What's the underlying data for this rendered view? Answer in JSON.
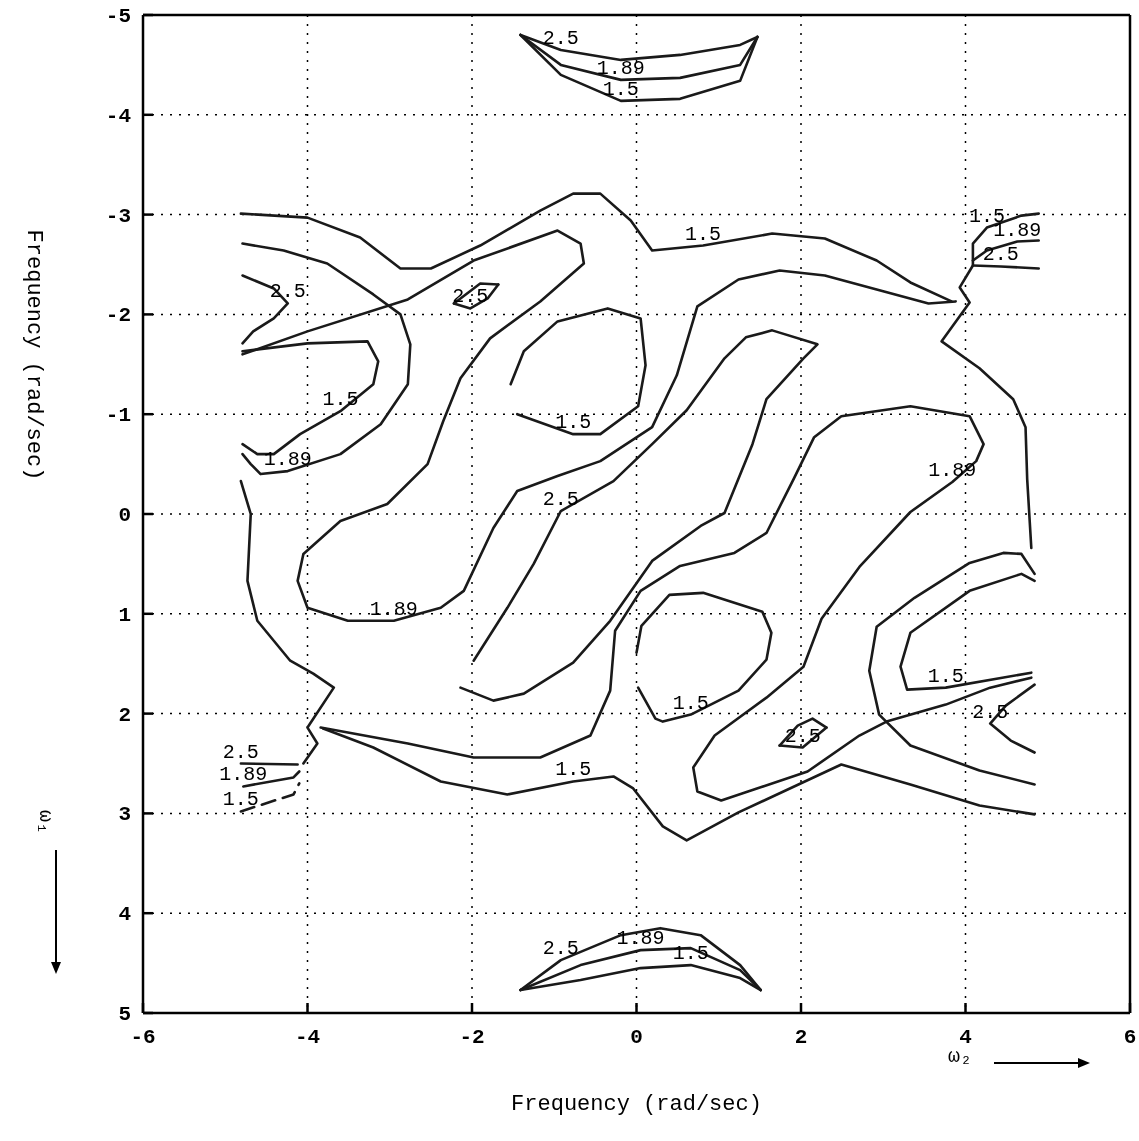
{
  "chart_data": {
    "type": "line",
    "xlabel": "Frequency (rad/sec)",
    "ylabel": "Frequency (rad/sec)",
    "xlim": [
      -6,
      6
    ],
    "ylim": [
      5,
      -5
    ],
    "xticks": [
      -6,
      -4,
      -2,
      0,
      2,
      4,
      6
    ],
    "yticks": [
      -5,
      -4,
      -3,
      -2,
      -1,
      0,
      1,
      2,
      3,
      4,
      5
    ],
    "grid": true,
    "series": [
      {
        "color": "#1a1a1a",
        "x": [
          -1.41,
          -0.92,
          -0.19,
          0.53,
          1.26,
          1.47
        ],
        "values": [
          -4.8,
          -4.65,
          -4.55,
          -4.6,
          -4.7,
          -4.78
        ]
      },
      {
        "color": "#1a1a1a",
        "x": [
          -1.41,
          -0.92,
          -0.19,
          0.53,
          1.26,
          1.47
        ],
        "values": [
          -4.8,
          -4.5,
          -4.35,
          -4.37,
          -4.5,
          -4.78
        ]
      },
      {
        "color": "#1a1a1a",
        "x": [
          -1.41,
          -0.92,
          -0.19,
          0.53,
          1.26,
          1.47
        ],
        "values": [
          -4.8,
          -4.4,
          -4.14,
          -4.16,
          -4.34,
          -4.78
        ]
      },
      {
        "color": "#1a1a1a",
        "x": [
          -1.41,
          -0.92,
          -0.19,
          0.29,
          0.78,
          1.26,
          1.51
        ],
        "values": [
          4.77,
          4.47,
          4.22,
          4.15,
          4.22,
          4.52,
          4.77
        ]
      },
      {
        "color": "#1a1a1a",
        "x": [
          -1.41,
          -0.68,
          0.05,
          0.66,
          1.26,
          1.51
        ],
        "values": [
          4.77,
          4.52,
          4.37,
          4.35,
          4.57,
          4.77
        ]
      },
      {
        "color": "#1a1a1a",
        "x": [
          -1.41,
          -0.68,
          0.05,
          0.66,
          1.26,
          1.51
        ],
        "values": [
          4.77,
          4.67,
          4.55,
          4.52,
          4.65,
          4.77
        ]
      },
      {
        "color": "#1a1a1a",
        "x": [
          -4.81,
          -4.0,
          -3.36,
          -2.87,
          -2.5,
          -1.9,
          -1.17,
          -0.77,
          -0.44,
          -0.07,
          0.19,
          0.81,
          1.65,
          2.29,
          2.92,
          3.33,
          3.83
        ],
        "values": [
          -3.01,
          -2.97,
          -2.77,
          -2.46,
          -2.46,
          -2.69,
          -3.04,
          -3.21,
          -3.21,
          -2.94,
          -2.64,
          -2.69,
          -2.81,
          -2.76,
          -2.54,
          -2.32,
          -2.13
        ]
      },
      {
        "color": "#1a1a1a",
        "x": [
          4.89,
          4.68,
          4.26,
          4.09,
          4.09,
          3.93,
          4.05,
          3.71,
          4.17,
          4.58,
          4.73,
          4.75,
          4.8
        ],
        "values": [
          -3.01,
          -2.99,
          -2.87,
          -2.71,
          -2.49,
          -2.27,
          -2.12,
          -1.73,
          -1.46,
          -1.15,
          -0.87,
          -0.35,
          0.34
        ]
      },
      {
        "color": "#1a1a1a",
        "x": [
          4.09,
          4.26,
          4.63,
          4.89
        ],
        "values": [
          -2.54,
          -2.64,
          -2.73,
          -2.74
        ]
      },
      {
        "color": "#1a1a1a",
        "x": [
          4.09,
          4.43,
          4.89
        ],
        "values": [
          -2.49,
          -2.48,
          -2.46
        ]
      },
      {
        "color": "#1a1a1a",
        "x": [
          -4.79,
          -4.29,
          -3.76,
          -3.2,
          -2.87,
          -2.75,
          -2.78,
          -3.11,
          -3.6,
          -4.24,
          -4.57,
          -4.69,
          -4.79
        ],
        "values": [
          -2.71,
          -2.64,
          -2.51,
          -2.2,
          -2.0,
          -1.7,
          -1.3,
          -0.9,
          -0.6,
          -0.43,
          -0.4,
          -0.5,
          -0.6
        ]
      },
      {
        "color": "#1a1a1a",
        "x": [
          -4.79,
          -4.0,
          -3.27,
          -3.14,
          -3.2,
          -3.6,
          -4.09,
          -4.41,
          -4.61,
          -4.79
        ],
        "values": [
          -1.63,
          -1.71,
          -1.73,
          -1.53,
          -1.3,
          -1.03,
          -0.8,
          -0.6,
          -0.6,
          -0.7
        ]
      },
      {
        "color": "#1a1a1a",
        "x": [
          -4.79,
          -4.41,
          -4.24,
          -4.41,
          -4.66,
          -4.79
        ],
        "values": [
          -2.39,
          -2.26,
          -2.11,
          -1.96,
          -1.83,
          -1.71
        ]
      },
      {
        "color": "#1a1a1a",
        "x": [
          -2.22,
          -1.9,
          -1.68
        ],
        "values": [
          -2.11,
          -2.31,
          -2.3
        ]
      },
      {
        "color": "#1a1a1a",
        "x": [
          -1.68,
          -1.81,
          -2.02,
          -2.22
        ],
        "values": [
          -2.3,
          -2.16,
          -2.06,
          -2.11
        ]
      },
      {
        "color": "#1a1a1a",
        "x": [
          -4.79,
          -4.0,
          -2.78,
          -1.98,
          -0.96,
          -0.68,
          -0.64,
          -1.17,
          -1.78,
          -2.14,
          -2.35,
          -2.54,
          -3.03,
          -3.6,
          -4.05,
          -4.12,
          -4.0,
          -3.51,
          -2.95,
          -2.38,
          -2.1,
          -1.74,
          -1.45,
          -0.96,
          -0.44,
          0.19,
          0.49,
          0.74,
          1.24,
          1.74,
          2.29,
          2.92,
          3.55,
          3.88
        ],
        "values": [
          -1.6,
          -1.83,
          -2.15,
          -2.54,
          -2.84,
          -2.71,
          -2.51,
          -2.13,
          -1.76,
          -1.36,
          -0.93,
          -0.5,
          -0.1,
          0.07,
          0.4,
          0.67,
          0.94,
          1.07,
          1.07,
          0.94,
          0.77,
          0.14,
          -0.23,
          -0.38,
          -0.53,
          -0.87,
          -1.39,
          -2.08,
          -2.35,
          -2.44,
          -2.39,
          -2.25,
          -2.11,
          -2.13
        ]
      },
      {
        "color": "#1a1a1a",
        "x": [
          -1.53,
          -1.37,
          -0.96,
          -0.35,
          0.05,
          0.11,
          0.02,
          -0.44,
          -0.77,
          -1.45
        ],
        "values": [
          -1.3,
          -1.63,
          -1.93,
          -2.06,
          -1.96,
          -1.49,
          -1.08,
          -0.8,
          -0.8,
          -1.0
        ]
      },
      {
        "color": "#1a1a1a",
        "x": [
          -2.14,
          -1.74,
          -1.37,
          -0.77,
          -0.32,
          0.19,
          0.78,
          1.07,
          1.41,
          1.58,
          2.03,
          2.2,
          1.65,
          1.33,
          1.07,
          0.61,
          0.19,
          -0.28,
          -0.92,
          -1.25,
          -1.57,
          -1.98
        ],
        "values": [
          1.74,
          1.87,
          1.8,
          1.49,
          1.07,
          0.47,
          0.12,
          -0.01,
          -0.7,
          -1.15,
          -1.56,
          -1.7,
          -1.84,
          -1.77,
          -1.56,
          -1.04,
          -0.7,
          -0.33,
          -0.03,
          0.5,
          0.94,
          1.47
        ]
      },
      {
        "color": "#1a1a1a",
        "x": [
          4.8,
          4.3,
          3.76,
          3.04,
          2.71,
          2.08,
          1.03,
          0.74,
          0.69,
          0.95,
          1.58,
          2.03,
          2.25,
          2.71,
          3.33,
          3.84,
          4.13,
          4.22,
          4.05,
          3.33,
          2.49,
          2.16,
          1.91,
          1.58,
          1.19,
          0.53,
          0.05,
          -0.26,
          -0.32,
          -0.56,
          -1.17,
          -1.98,
          -2.78,
          -3.84
        ],
        "values": [
          1.64,
          1.74,
          1.91,
          2.08,
          2.22,
          2.58,
          2.87,
          2.78,
          2.54,
          2.22,
          1.84,
          1.53,
          1.05,
          0.53,
          -0.02,
          -0.32,
          -0.53,
          -0.7,
          -0.98,
          -1.08,
          -0.98,
          -0.77,
          -0.35,
          0.19,
          0.39,
          0.52,
          0.77,
          1.17,
          1.77,
          2.22,
          2.44,
          2.44,
          2.3,
          2.14
        ]
      },
      {
        "color": "#1a1a1a",
        "x": [
          0.0,
          0.06,
          0.4,
          0.81,
          1.53,
          1.64,
          1.58,
          1.24,
          0.66,
          0.32,
          0.23,
          0.02
        ],
        "values": [
          1.39,
          1.12,
          0.81,
          0.79,
          0.98,
          1.19,
          1.46,
          1.77,
          2.01,
          2.08,
          2.05,
          1.74
        ]
      },
      {
        "color": "#1a1a1a",
        "x": [
          4.84,
          4.68,
          4.05,
          3.33,
          3.21,
          3.29,
          3.76,
          4.8
        ],
        "values": [
          0.67,
          0.6,
          0.77,
          1.19,
          1.53,
          1.76,
          1.74,
          1.59
        ]
      },
      {
        "color": "#1a1a1a",
        "x": [
          4.84,
          4.68,
          4.46,
          4.05,
          3.38,
          2.92,
          2.83,
          2.95,
          3.33,
          4.17,
          4.84
        ],
        "values": [
          0.6,
          0.4,
          0.39,
          0.49,
          0.84,
          1.13,
          1.57,
          2.01,
          2.32,
          2.57,
          2.71
        ]
      },
      {
        "color": "#1a1a1a",
        "x": [
          4.84,
          4.49,
          4.3,
          4.55,
          4.84
        ],
        "values": [
          1.71,
          1.92,
          2.1,
          2.27,
          2.39
        ]
      },
      {
        "color": "#1a1a1a",
        "x": [
          -3.81,
          -3.2,
          -2.38,
          -1.57,
          -0.77,
          -0.28,
          -0.04,
          0.32,
          0.61,
          1.24,
          2.49,
          3.33,
          4.17,
          4.84
        ],
        "values": [
          2.15,
          2.34,
          2.68,
          2.81,
          2.68,
          2.63,
          2.75,
          3.13,
          3.27,
          2.99,
          2.51,
          2.71,
          2.92,
          3.01
        ]
      },
      {
        "color": "#1a1a1a",
        "x": [
          1.74,
          1.96,
          2.14,
          2.31
        ],
        "values": [
          2.32,
          2.12,
          2.05,
          2.14
        ]
      },
      {
        "color": "#1a1a1a",
        "x": [
          2.31,
          2.02,
          1.74
        ],
        "values": [
          2.14,
          2.34,
          2.32
        ]
      },
      {
        "color": "#1a1a1a",
        "x": [
          -4.81,
          -4.69,
          -4.73,
          -4.61,
          -4.21,
          -3.93,
          -3.68,
          -4.0,
          -3.88,
          -4.05
        ],
        "values": [
          -0.33,
          0.0,
          0.67,
          1.07,
          1.47,
          1.6,
          1.74,
          2.14,
          2.3,
          2.5
        ]
      },
      {
        "color": "#1a1a1a",
        "x": [
          -4.81,
          -4.12
        ],
        "values": [
          2.5,
          2.51
        ]
      },
      {
        "color": "#1a1a1a",
        "x": [
          -4.78,
          -4.17,
          -4.1
        ],
        "values": [
          2.73,
          2.64,
          2.58
        ]
      },
      {
        "color": "#1a1a1a",
        "line_style": "dashed",
        "x": [
          -4.81,
          -4.17,
          -4.1
        ],
        "values": [
          2.98,
          2.81,
          2.7
        ]
      }
    ],
    "annotations": [
      {
        "text": "2.5",
        "x": -0.92,
        "y": -4.65
      },
      {
        "text": "1.89",
        "x": -0.19,
        "y": -4.35
      },
      {
        "text": "1.5",
        "x": -0.19,
        "y": -4.14
      },
      {
        "text": "1.5",
        "x": 0.81,
        "y": -2.69
      },
      {
        "text": "1.5",
        "x": 4.26,
        "y": -2.87
      },
      {
        "text": "1.89",
        "x": 4.63,
        "y": -2.73
      },
      {
        "text": "2.5",
        "x": 4.43,
        "y": -2.48
      },
      {
        "text": "2.5",
        "x": -4.24,
        "y": -2.11
      },
      {
        "text": "2.5",
        "x": -2.02,
        "y": -2.06
      },
      {
        "text": "1.5",
        "x": -3.6,
        "y": -1.03
      },
      {
        "text": "1.5",
        "x": -0.77,
        "y": -0.8
      },
      {
        "text": "1.89",
        "x": -4.24,
        "y": -0.43
      },
      {
        "text": "1.89",
        "x": 3.84,
        "y": -0.32
      },
      {
        "text": "2.5",
        "x": -0.92,
        "y": -0.03
      },
      {
        "text": "1.89",
        "x": -2.95,
        "y": 1.07
      },
      {
        "text": "1.5",
        "x": 0.66,
        "y": 2.01
      },
      {
        "text": "1.5",
        "x": 3.76,
        "y": 1.74
      },
      {
        "text": "2.5",
        "x": 4.3,
        "y": 2.1
      },
      {
        "text": "2.5",
        "x": 2.02,
        "y": 2.34
      },
      {
        "text": "2.5",
        "x": -4.81,
        "y": 2.5
      },
      {
        "text": "1.89",
        "x": -4.78,
        "y": 2.73
      },
      {
        "text": "1.5",
        "x": -4.81,
        "y": 2.98
      },
      {
        "text": "1.5",
        "x": -0.77,
        "y": 2.68
      },
      {
        "text": "2.5",
        "x": -0.92,
        "y": 4.47
      },
      {
        "text": "1.89",
        "x": 0.05,
        "y": 4.37
      },
      {
        "text": "1.5",
        "x": 0.66,
        "y": 4.52
      },
      "ω₁",
      "ω₂"
    ]
  }
}
